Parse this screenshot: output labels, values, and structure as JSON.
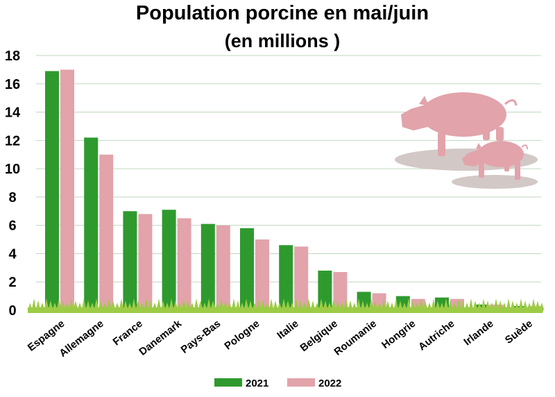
{
  "chart_data": {
    "type": "bar",
    "title": "Population porcine en mai/juin",
    "subtitle": "(en millions )",
    "categories": [
      "Espagne",
      "Allemagne",
      "France",
      "Danemark",
      "Pays-Bas",
      "Pologne",
      "Italie",
      "Belgique",
      "Roumanie",
      "Hongrie",
      "Autriche",
      "Irlande",
      "Suède"
    ],
    "series": [
      {
        "name": "2021",
        "color": "#2e9a2e",
        "values": [
          16.9,
          12.2,
          7.0,
          7.1,
          6.1,
          5.8,
          4.6,
          2.8,
          1.3,
          1.0,
          0.9,
          0.4,
          0.3
        ]
      },
      {
        "name": "2022",
        "color": "#e2a3ab",
        "values": [
          17.0,
          11.0,
          6.8,
          6.5,
          6.0,
          5.0,
          4.5,
          2.7,
          1.2,
          0.8,
          0.8,
          0.4,
          0.3
        ]
      }
    ],
    "yticks": [
      "0",
      "2",
      "4",
      "6",
      "8",
      "10",
      "12",
      "14",
      "16",
      "18"
    ],
    "ylim": [
      0,
      18
    ],
    "grid": true,
    "legend_position": "bottom",
    "decoration": "pig-illustration"
  }
}
